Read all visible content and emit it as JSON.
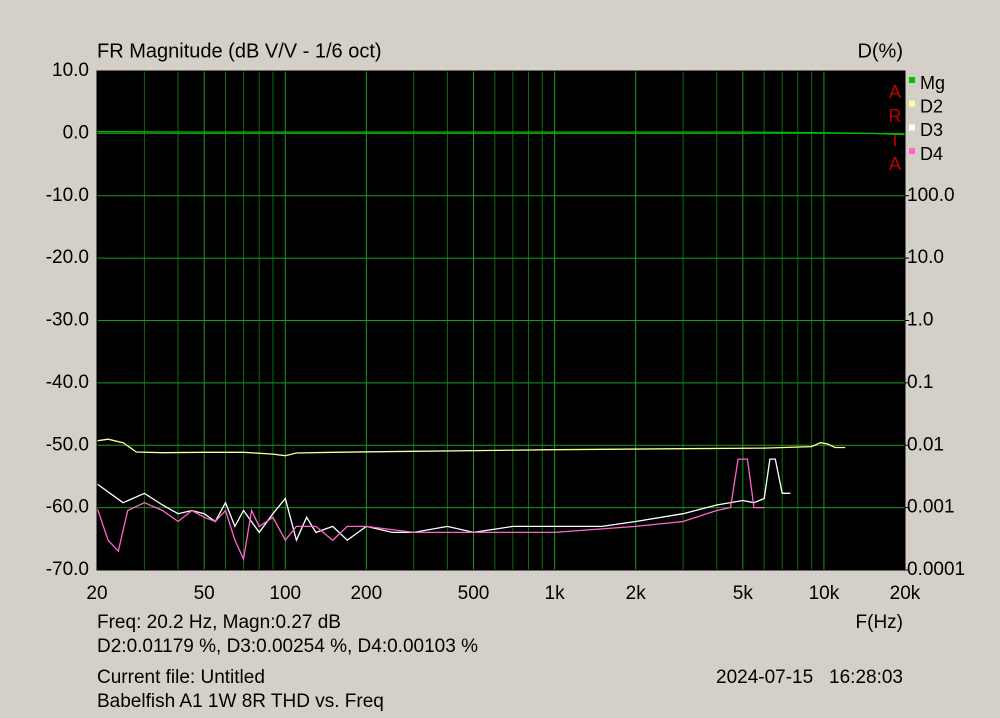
{
  "chart_data": {
    "type": "line",
    "title": "FR Magnitude (dB V/V - 1/6 oct)",
    "y2_label": "D(%)",
    "x_label": "F(Hz)",
    "watermark": "ARTA",
    "xscale": "log",
    "y2scale": "log",
    "grid": true,
    "xlim": [
      20,
      20000
    ],
    "xticks": [
      20,
      50,
      100,
      200,
      500,
      {
        "value": 1000,
        "label": "1k"
      },
      {
        "value": 2000,
        "label": "2k"
      },
      {
        "value": 5000,
        "label": "5k"
      },
      {
        "value": 10000,
        "label": "10k"
      },
      {
        "value": 20000,
        "label": "20k"
      }
    ],
    "xminorticks": [
      30,
      40,
      60,
      70,
      80,
      90,
      300,
      400,
      600,
      700,
      800,
      900,
      3000,
      4000,
      6000,
      7000,
      8000,
      9000
    ],
    "ylim": [
      -70,
      10
    ],
    "yticks": [
      {
        "value": 10,
        "label": "10.0"
      },
      {
        "value": 0,
        "label": "0.0"
      },
      {
        "value": -10,
        "label": "-10.0"
      },
      {
        "value": -20,
        "label": "-20.0"
      },
      {
        "value": -30,
        "label": "-30.0"
      },
      {
        "value": -40,
        "label": "-40.0"
      },
      {
        "value": -50,
        "label": "-50.0"
      },
      {
        "value": -60,
        "label": "-60.0"
      },
      {
        "value": -70,
        "label": "-70.0"
      }
    ],
    "y2lim": [
      0.0001,
      10000
    ],
    "y2ticks": [
      {
        "value": 100,
        "label": "100.0"
      },
      {
        "value": 10,
        "label": "10.0"
      },
      {
        "value": 1,
        "label": "1.0"
      },
      0.1,
      0.01,
      0.001,
      0.0001
    ],
    "series": [
      {
        "name": "Mg",
        "color": "#00c000",
        "x": [
          20,
          50,
          100,
          200,
          500,
          1000,
          2000,
          5000,
          10000,
          15000,
          20000
        ],
        "values": [
          0.27,
          0.2,
          0.2,
          0.2,
          0.2,
          0.2,
          0.2,
          0.2,
          0.1,
          0,
          -0.2
        ]
      },
      {
        "name": "D2",
        "color": "#ffff99",
        "axis": "y2",
        "x": [
          20,
          22,
          25,
          28,
          35,
          50,
          70,
          90,
          100,
          110,
          150,
          300,
          1000,
          3000,
          6000,
          9000,
          9700,
          10300,
          11000,
          12000
        ],
        "values": [
          0.0118,
          0.0125,
          0.011,
          0.0078,
          0.0076,
          0.0077,
          0.0077,
          0.0072,
          0.0068,
          0.0075,
          0.0077,
          0.008,
          0.0085,
          0.0088,
          0.009,
          0.0095,
          0.011,
          0.0105,
          0.0092,
          0.0092
        ]
      },
      {
        "name": "D3",
        "color": "#ffffff",
        "axis": "y2",
        "x": [
          20,
          25,
          30,
          35,
          40,
          45,
          50,
          55,
          60,
          65,
          70,
          80,
          90,
          100,
          110,
          120,
          130,
          150,
          170,
          200,
          250,
          300,
          400,
          500,
          700,
          1000,
          1500,
          2000,
          3000,
          4000,
          5000,
          5500,
          6000,
          6300,
          6600,
          7000,
          7500
        ],
        "values": [
          0.0024,
          0.0012,
          0.0017,
          0.0011,
          0.0008,
          0.0009,
          0.0008,
          0.0006,
          0.0012,
          0.0005,
          0.0009,
          0.0004,
          0.0008,
          0.0014,
          0.0003,
          0.0007,
          0.0004,
          0.0005,
          0.0003,
          0.0005,
          0.0004,
          0.0004,
          0.0005,
          0.0004,
          0.0005,
          0.0005,
          0.0005,
          0.0006,
          0.0008,
          0.0011,
          0.0013,
          0.0012,
          0.0014,
          0.006,
          0.006,
          0.0017,
          0.0017
        ]
      },
      {
        "name": "D4",
        "color": "#ff66cc",
        "axis": "y2",
        "x": [
          20,
          22,
          24,
          26,
          30,
          35,
          40,
          45,
          50,
          55,
          60,
          65,
          70,
          75,
          80,
          90,
          100,
          110,
          130,
          150,
          170,
          200,
          300,
          500,
          1000,
          2000,
          3000,
          4000,
          4500,
          4800,
          5200,
          5500,
          6000
        ],
        "values": [
          0.001,
          0.0003,
          0.0002,
          0.0009,
          0.0012,
          0.0009,
          0.0006,
          0.0009,
          0.0007,
          0.0006,
          0.0009,
          0.0003,
          0.00015,
          0.0009,
          0.0005,
          0.0007,
          0.0003,
          0.0005,
          0.0005,
          0.0003,
          0.0005,
          0.0005,
          0.0004,
          0.0004,
          0.0004,
          0.0005,
          0.0006,
          0.0009,
          0.001,
          0.006,
          0.006,
          0.001,
          0.001
        ]
      }
    ],
    "info": [
      "Freq: 20.2 Hz, Magn:0.27 dB",
      "D2:0.01179 %, D3:0.00254 %, D4:0.00103 %",
      "Current file: Untitled",
      "Babelfish A1 1W 8R THD vs. Freq"
    ],
    "timestamp": "2024-07-15   16:28:03"
  }
}
